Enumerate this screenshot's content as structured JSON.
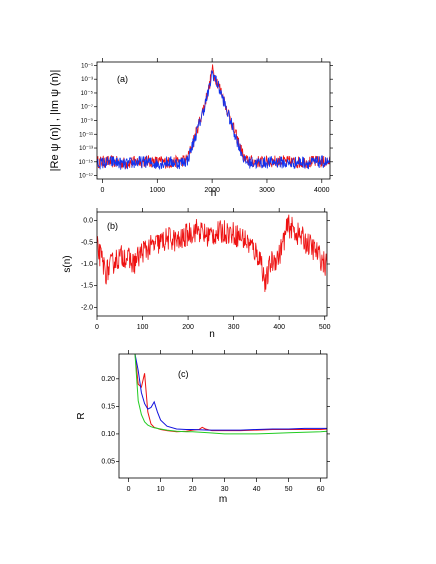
{
  "chart_data": [
    {
      "id": "a",
      "type": "line",
      "panel_label": "(a)",
      "xlabel": "n",
      "ylabel": "|Re ψ (n)| , |Im ψ (n)|",
      "xlim": [
        -100,
        4150
      ],
      "x_ticks": [
        0,
        1000,
        2000,
        3000,
        4000
      ],
      "x_tick_labels": [
        "0",
        "1000",
        "2000",
        "3000",
        "4000"
      ],
      "y_scale": "log",
      "ylim_exponent": [
        -17.5,
        -0.5
      ],
      "y_ticks_exponent": [
        -1,
        -3,
        -5,
        -7,
        -9,
        -11,
        -13,
        -15,
        -17
      ],
      "y_tick_labels": [
        "10⁻¹",
        "10⁻³",
        "10⁻⁵",
        "10⁻⁷",
        "10⁻⁹",
        "10⁻¹¹",
        "10⁻¹³",
        "10⁻¹⁵",
        "10⁻¹⁷"
      ],
      "grid": false,
      "series": [
        {
          "color": "#ee1111",
          "x": [
            0,
            200,
            400,
            600,
            800,
            1000,
            1200,
            1400,
            1550,
            1700,
            1850,
            1950,
            2000,
            2050,
            2150,
            2300,
            2450,
            2600,
            2800,
            3000,
            3200,
            3400,
            3600,
            3800,
            4000,
            4100
          ],
          "y_exponent": [
            -15,
            -15,
            -15.2,
            -15,
            -14.9,
            -15,
            -15.1,
            -15,
            -14.6,
            -11,
            -7,
            -4,
            -1.5,
            -2.5,
            -4.5,
            -8,
            -11.5,
            -14.8,
            -15,
            -15,
            -14.9,
            -15,
            -15.1,
            -15,
            -15,
            -15
          ]
        },
        {
          "color": "#1133ee",
          "x": [
            0,
            200,
            400,
            600,
            800,
            1000,
            1200,
            1400,
            1550,
            1700,
            1850,
            1950,
            2000,
            2050,
            2150,
            2300,
            2450,
            2600,
            2800,
            3000,
            3200,
            3400,
            3600,
            3800,
            4000,
            4100
          ],
          "y_exponent": [
            -15.2,
            -15,
            -15.4,
            -15.1,
            -15,
            -15.3,
            -15,
            -15.2,
            -14.8,
            -11.2,
            -7.3,
            -4.3,
            -2,
            -2.8,
            -4.8,
            -8.3,
            -11.8,
            -15,
            -15.2,
            -15.1,
            -15,
            -15.3,
            -15,
            -15.2,
            -15,
            -15.1
          ]
        }
      ]
    },
    {
      "id": "b",
      "type": "line",
      "panel_label": "(b)",
      "xlabel": "n",
      "ylabel": "s(n)",
      "xlim": [
        0,
        505
      ],
      "ylim": [
        -2.2,
        0.2
      ],
      "x_ticks": [
        0,
        100,
        200,
        300,
        400,
        500
      ],
      "x_tick_labels": [
        "0",
        "100",
        "200",
        "300",
        "400",
        "500"
      ],
      "y_ticks": [
        0.0,
        -0.5,
        -1.0,
        -1.5,
        -2.0
      ],
      "y_tick_labels": [
        "0.0",
        "-0.5",
        "-1.0",
        "-1.5",
        "-2.0"
      ],
      "grid": false,
      "series": [
        {
          "color": "#ee1111",
          "x": [
            0,
            20,
            40,
            60,
            80,
            100,
            120,
            140,
            160,
            180,
            200,
            220,
            240,
            260,
            280,
            300,
            320,
            340,
            360,
            370,
            380,
            400,
            420,
            440,
            460,
            480,
            500
          ],
          "y": [
            -0.6,
            -1.2,
            -0.9,
            -0.8,
            -1.0,
            -0.7,
            -0.6,
            -0.5,
            -0.4,
            -0.5,
            -0.3,
            -0.2,
            -0.35,
            -0.3,
            -0.25,
            -0.3,
            -0.4,
            -0.6,
            -0.9,
            -1.5,
            -1.0,
            -0.8,
            -0.1,
            -0.3,
            -0.5,
            -0.7,
            -1.0
          ]
        }
      ]
    },
    {
      "id": "c",
      "type": "line",
      "panel_label": "(c)",
      "xlabel": "m",
      "ylabel": "R",
      "xlim": [
        -3,
        62
      ],
      "ylim": [
        0.02,
        0.245
      ],
      "x_ticks": [
        0,
        10,
        20,
        30,
        40,
        50,
        60
      ],
      "x_tick_labels": [
        "0",
        "10",
        "20",
        "30",
        "40",
        "50",
        "60"
      ],
      "y_ticks": [
        0.05,
        0.1,
        0.15,
        0.2
      ],
      "y_tick_labels": [
        "0.05",
        "0.10",
        "0.15",
        "0.20"
      ],
      "grid": false,
      "series": [
        {
          "color": "#ee1111",
          "x": [
            2,
            3,
            4,
            5,
            6,
            7,
            8,
            10,
            12,
            15,
            18,
            20,
            22,
            23,
            24,
            26,
            30,
            35,
            40,
            45,
            50,
            55,
            60,
            62
          ],
          "y": [
            0.245,
            0.19,
            0.185,
            0.21,
            0.14,
            0.118,
            0.112,
            0.108,
            0.106,
            0.104,
            0.105,
            0.107,
            0.108,
            0.112,
            0.109,
            0.106,
            0.106,
            0.106,
            0.107,
            0.108,
            0.108,
            0.108,
            0.108,
            0.109
          ]
        },
        {
          "color": "#1111dd",
          "x": [
            2,
            3,
            4,
            5,
            6,
            7,
            8,
            9,
            10,
            12,
            15,
            18,
            20,
            25,
            30,
            35,
            40,
            45,
            50,
            55,
            60,
            62
          ],
          "y": [
            0.245,
            0.215,
            0.175,
            0.155,
            0.145,
            0.148,
            0.158,
            0.14,
            0.125,
            0.114,
            0.109,
            0.108,
            0.108,
            0.107,
            0.107,
            0.107,
            0.108,
            0.109,
            0.109,
            0.11,
            0.11,
            0.11
          ]
        },
        {
          "color": "#22cc22",
          "x": [
            2,
            3,
            4,
            5,
            6,
            7,
            8,
            10,
            12,
            15,
            18,
            20,
            25,
            30,
            35,
            40,
            45,
            50,
            55,
            60,
            62
          ],
          "y": [
            0.245,
            0.16,
            0.135,
            0.122,
            0.116,
            0.113,
            0.111,
            0.109,
            0.107,
            0.105,
            0.104,
            0.104,
            0.102,
            0.1,
            0.1,
            0.1,
            0.101,
            0.102,
            0.103,
            0.104,
            0.105
          ]
        }
      ]
    }
  ]
}
